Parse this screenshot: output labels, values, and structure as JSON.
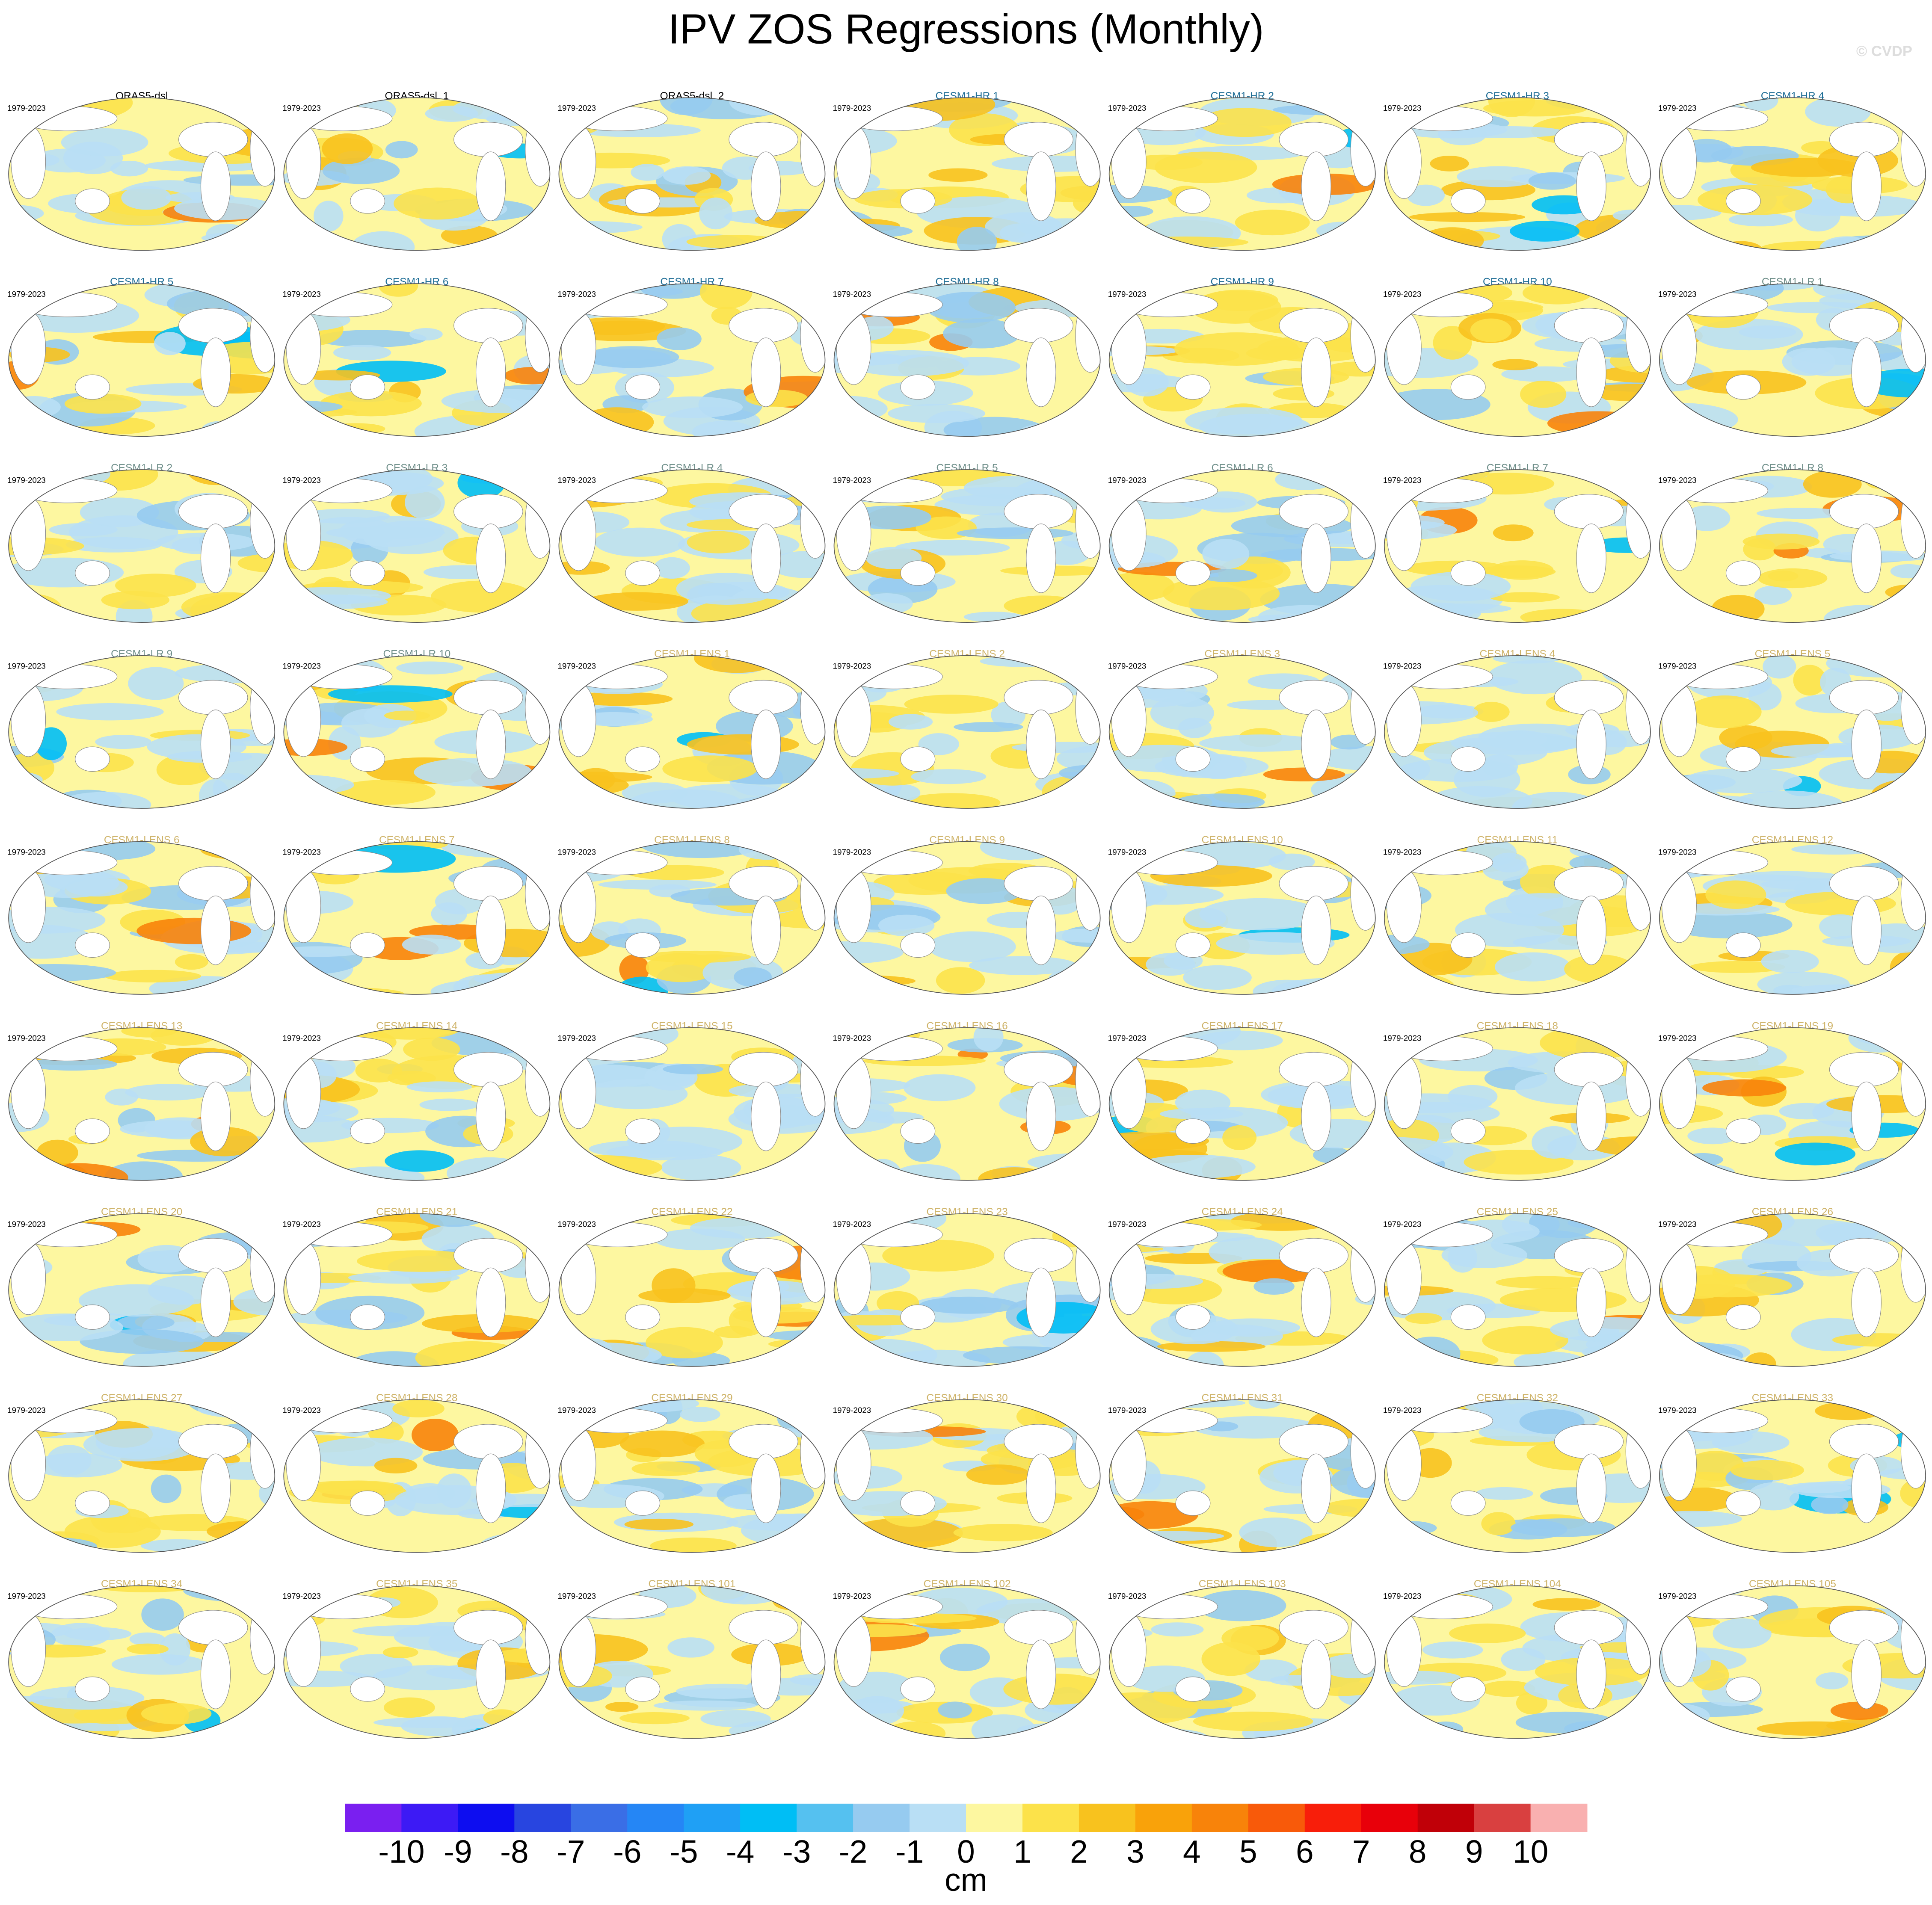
{
  "title": "IPV ZOS Regressions (Monthly)",
  "watermark": "© CVDP",
  "groups": [
    {
      "color": "#000000",
      "panels": [
        {
          "title": "ORAS5-dsl",
          "period": "1979-2023"
        },
        {
          "title": "ORAS5-dsl_1",
          "period": "1979-2023"
        },
        {
          "title": "ORAS5-dsl_2",
          "period": "1979-2023"
        }
      ]
    },
    {
      "color": "#1f6e96",
      "panels": [
        {
          "title": "CESM1-HR 1",
          "period": "1979-2023"
        },
        {
          "title": "CESM1-HR 2",
          "period": "1979-2023"
        },
        {
          "title": "CESM1-HR 3",
          "period": "1979-2023"
        },
        {
          "title": "CESM1-HR 4",
          "period": "1979-2023"
        },
        {
          "title": "CESM1-HR 5",
          "period": "1979-2023"
        },
        {
          "title": "CESM1-HR 6",
          "period": "1979-2023"
        },
        {
          "title": "CESM1-HR 7",
          "period": "1979-2023"
        },
        {
          "title": "CESM1-HR 8",
          "period": "1979-2023"
        },
        {
          "title": "CESM1-HR 9",
          "period": "1979-2023"
        },
        {
          "title": "CESM1-HR 10",
          "period": "1979-2023"
        }
      ]
    },
    {
      "color": "#6f8f8a",
      "panels": [
        {
          "title": "CESM1-LR 1",
          "period": "1979-2023"
        },
        {
          "title": "CESM1-LR 2",
          "period": "1979-2023"
        },
        {
          "title": "CESM1-LR 3",
          "period": "1979-2023"
        },
        {
          "title": "CESM1-LR 4",
          "period": "1979-2023"
        },
        {
          "title": "CESM1-LR 5",
          "period": "1979-2023"
        },
        {
          "title": "CESM1-LR 6",
          "period": "1979-2023"
        },
        {
          "title": "CESM1-LR 7",
          "period": "1979-2023"
        },
        {
          "title": "CESM1-LR 8",
          "period": "1979-2023"
        },
        {
          "title": "CESM1-LR 9",
          "period": "1979-2023"
        },
        {
          "title": "CESM1-LR 10",
          "period": "1979-2023"
        }
      ]
    },
    {
      "color": "#cfb46a",
      "panels": [
        {
          "title": "CESM1-LENS 1",
          "period": "1979-2023"
        },
        {
          "title": "CESM1-LENS 2",
          "period": "1979-2023"
        },
        {
          "title": "CESM1-LENS 3",
          "period": "1979-2023"
        },
        {
          "title": "CESM1-LENS 4",
          "period": "1979-2023"
        },
        {
          "title": "CESM1-LENS 5",
          "period": "1979-2023"
        },
        {
          "title": "CESM1-LENS 6",
          "period": "1979-2023"
        },
        {
          "title": "CESM1-LENS 7",
          "period": "1979-2023"
        },
        {
          "title": "CESM1-LENS 8",
          "period": "1979-2023"
        },
        {
          "title": "CESM1-LENS 9",
          "period": "1979-2023"
        },
        {
          "title": "CESM1-LENS 10",
          "period": "1979-2023"
        },
        {
          "title": "CESM1-LENS 11",
          "period": "1979-2023"
        },
        {
          "title": "CESM1-LENS 12",
          "period": "1979-2023"
        },
        {
          "title": "CESM1-LENS 13",
          "period": "1979-2023"
        },
        {
          "title": "CESM1-LENS 14",
          "period": "1979-2023"
        },
        {
          "title": "CESM1-LENS 15",
          "period": "1979-2023"
        },
        {
          "title": "CESM1-LENS 16",
          "period": "1979-2023"
        },
        {
          "title": "CESM1-LENS 17",
          "period": "1979-2023"
        },
        {
          "title": "CESM1-LENS 18",
          "period": "1979-2023"
        },
        {
          "title": "CESM1-LENS 19",
          "period": "1979-2023"
        },
        {
          "title": "CESM1-LENS 20",
          "period": "1979-2023"
        },
        {
          "title": "CESM1-LENS 21",
          "period": "1979-2023"
        },
        {
          "title": "CESM1-LENS 22",
          "period": "1979-2023"
        },
        {
          "title": "CESM1-LENS 23",
          "period": "1979-2023"
        },
        {
          "title": "CESM1-LENS 24",
          "period": "1979-2023"
        },
        {
          "title": "CESM1-LENS 25",
          "period": "1979-2023"
        },
        {
          "title": "CESM1-LENS 26",
          "period": "1979-2023"
        },
        {
          "title": "CESM1-LENS 27",
          "period": "1979-2023"
        },
        {
          "title": "CESM1-LENS 28",
          "period": "1979-2023"
        },
        {
          "title": "CESM1-LENS 29",
          "period": "1979-2023"
        },
        {
          "title": "CESM1-LENS 30",
          "period": "1979-2023"
        },
        {
          "title": "CESM1-LENS 31",
          "period": "1979-2023"
        },
        {
          "title": "CESM1-LENS 32",
          "period": "1979-2023"
        },
        {
          "title": "CESM1-LENS 33",
          "period": "1979-2023"
        },
        {
          "title": "CESM1-LENS 34",
          "period": "1979-2023"
        },
        {
          "title": "CESM1-LENS 35",
          "period": "1979-2023"
        },
        {
          "title": "CESM1-LENS 101",
          "period": "1979-2023"
        },
        {
          "title": "CESM1-LENS 102",
          "period": "1979-2023"
        },
        {
          "title": "CESM1-LENS 103",
          "period": "1979-2023"
        },
        {
          "title": "CESM1-LENS 104",
          "period": "1979-2023"
        },
        {
          "title": "CESM1-LENS 105",
          "period": "1979-2023"
        }
      ]
    }
  ],
  "colorbar": {
    "ticks": [
      -10,
      -9,
      -8,
      -7,
      -6,
      -5,
      -4,
      -3,
      -2,
      -1,
      0,
      1,
      2,
      3,
      4,
      5,
      6,
      7,
      8,
      9,
      10
    ],
    "colors": [
      "#7a1ff0",
      "#3d1af5",
      "#0d0df0",
      "#2845e0",
      "#3a6ee6",
      "#2586f5",
      "#1fa0f5",
      "#00bef5",
      "#55c1f0",
      "#96cbf0",
      "#b9dff5",
      "#fdf7a0",
      "#fce24a",
      "#f8c21e",
      "#f9a20a",
      "#f8830a",
      "#f85a0a",
      "#f81e0a",
      "#e8000a",
      "#c00008",
      "#d94040",
      "#f9b0b0"
    ],
    "label": "cm"
  }
}
